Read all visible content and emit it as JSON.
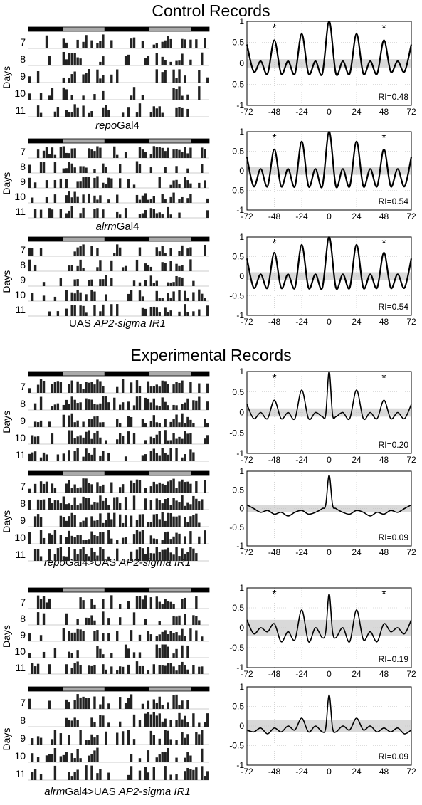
{
  "titles": {
    "control": "Control Records",
    "experimental": "Experimental Records"
  },
  "captions": [
    {
      "italic": "repo",
      "plain": "Gal4"
    },
    {
      "italic": "alrm",
      "plain": "Gal4"
    },
    {
      "pre": "UAS ",
      "italic": "AP2-sigma IR1"
    },
    {
      "italic": "repo",
      "plain": "Gal4>UAS ",
      "italic2": "AP2-sigma IR1"
    },
    {
      "italic": "alrm",
      "plain": "Gal4>UAS ",
      "italic2": "AP2-sigma IR1"
    }
  ],
  "actogram": {
    "ylabel": "Days",
    "days": [
      "7",
      "8",
      "9",
      "10",
      "11"
    ]
  },
  "chart_data": [
    {
      "type": "line",
      "panel": "repoGal4 control",
      "x": [
        -72,
        -66,
        -60,
        -54,
        -48,
        -42,
        -36,
        -30,
        -24,
        -18,
        -12,
        -6,
        0,
        6,
        12,
        18,
        24,
        30,
        36,
        42,
        48,
        54,
        60,
        66,
        72
      ],
      "y": [
        0.45,
        -0.2,
        0.05,
        -0.25,
        0.55,
        -0.25,
        0.05,
        -0.25,
        0.7,
        -0.25,
        0.05,
        -0.25,
        1.0,
        -0.25,
        0.05,
        -0.25,
        0.7,
        -0.25,
        0.05,
        -0.25,
        0.55,
        -0.2,
        0.05,
        -0.2,
        0.45
      ],
      "xlim": [
        -72,
        72
      ],
      "ylim": [
        -1,
        1
      ],
      "xticks": [
        "-72",
        "-48",
        "-24",
        "0",
        "24",
        "48",
        "72"
      ],
      "yticks": [
        "-1",
        "-0.5",
        "0",
        "0.5",
        "1"
      ],
      "stars": [
        -48,
        48
      ],
      "ri": "RI=0.48",
      "band": [
        -0.1,
        0.1
      ]
    },
    {
      "type": "line",
      "panel": "alrmGal4 control",
      "x": [
        -72,
        -66,
        -60,
        -54,
        -48,
        -42,
        -36,
        -30,
        -24,
        -18,
        -12,
        -6,
        0,
        6,
        12,
        18,
        24,
        30,
        36,
        42,
        48,
        54,
        60,
        66,
        72
      ],
      "y": [
        0.35,
        -0.4,
        0.05,
        -0.4,
        0.55,
        -0.4,
        0.05,
        -0.4,
        0.75,
        -0.4,
        0.05,
        -0.4,
        1.0,
        -0.4,
        0.05,
        -0.4,
        0.75,
        -0.4,
        0.05,
        -0.4,
        0.55,
        -0.4,
        0.05,
        -0.4,
        0.35
      ],
      "xlim": [
        -72,
        72
      ],
      "ylim": [
        -1,
        1
      ],
      "xticks": [
        "-72",
        "-48",
        "-24",
        "0",
        "24",
        "48",
        "72"
      ],
      "yticks": [
        "-1",
        "-0.5",
        "0",
        "0.5",
        "1"
      ],
      "stars": [
        -48,
        48
      ],
      "ri": "RI=0.54",
      "band": [
        -0.1,
        0.1
      ]
    },
    {
      "type": "line",
      "panel": "UAS AP2-sigma IR1",
      "x": [
        -72,
        -66,
        -60,
        -54,
        -48,
        -42,
        -36,
        -30,
        -24,
        -18,
        -12,
        -6,
        0,
        6,
        12,
        18,
        24,
        30,
        36,
        42,
        48,
        54,
        60,
        66,
        72
      ],
      "y": [
        0.45,
        -0.3,
        0.05,
        -0.3,
        0.6,
        -0.3,
        0.05,
        -0.3,
        0.8,
        -0.3,
        0.05,
        -0.3,
        1.0,
        -0.3,
        0.05,
        -0.3,
        0.8,
        -0.3,
        0.05,
        -0.3,
        0.6,
        -0.3,
        0.05,
        -0.3,
        0.45
      ],
      "xlim": [
        -72,
        72
      ],
      "ylim": [
        -1,
        1
      ],
      "xticks": [
        "-72",
        "-48",
        "-24",
        "0",
        "24",
        "48",
        "72"
      ],
      "yticks": [
        "-1",
        "-0.5",
        "0",
        "0.5",
        "1"
      ],
      "stars": [
        -48,
        48
      ],
      "ri": "RI=0.54",
      "band": [
        -0.1,
        0.1
      ]
    },
    {
      "type": "line",
      "panel": "repoGal4>UAS AP2-sigma IR1 fly 1",
      "x": [
        -72,
        -66,
        -60,
        -54,
        -48,
        -42,
        -36,
        -30,
        -24,
        -18,
        -12,
        -6,
        -3,
        0,
        3,
        6,
        12,
        18,
        24,
        30,
        36,
        42,
        48,
        54,
        60,
        66,
        72
      ],
      "y": [
        0.2,
        -0.15,
        0.0,
        -0.15,
        0.3,
        -0.15,
        0.0,
        -0.15,
        0.55,
        -0.15,
        0.0,
        -0.1,
        -0.05,
        1.0,
        -0.05,
        -0.1,
        0.0,
        -0.15,
        0.55,
        -0.15,
        0.0,
        -0.15,
        0.3,
        -0.15,
        0.0,
        -0.15,
        0.2
      ],
      "xlim": [
        -72,
        72
      ],
      "ylim": [
        -1,
        1
      ],
      "xticks": [
        "-72",
        "-48",
        "-24",
        "0",
        "24",
        "48",
        "72"
      ],
      "yticks": [
        "-1",
        "-0.5",
        "0",
        "0.5",
        "1"
      ],
      "stars": [
        -48,
        48
      ],
      "ri": "RI=0.20",
      "band": [
        -0.1,
        0.1
      ]
    },
    {
      "type": "line",
      "panel": "repoGal4>UAS AP2-sigma IR1 fly 2",
      "x": [
        -72,
        -66,
        -60,
        -54,
        -48,
        -42,
        -36,
        -30,
        -24,
        -18,
        -12,
        -6,
        -3,
        0,
        3,
        6,
        12,
        18,
        24,
        30,
        36,
        42,
        48,
        54,
        60,
        66,
        72
      ],
      "y": [
        0.1,
        0.0,
        -0.1,
        -0.05,
        -0.15,
        -0.1,
        -0.2,
        -0.1,
        -0.05,
        -0.15,
        -0.1,
        0.0,
        0.1,
        0.9,
        0.1,
        0.0,
        -0.1,
        -0.15,
        -0.05,
        -0.1,
        -0.2,
        -0.1,
        -0.15,
        -0.05,
        -0.1,
        0.0,
        0.1
      ],
      "xlim": [
        -72,
        72
      ],
      "ylim": [
        -1,
        1
      ],
      "xticks": [
        "-72",
        "-48",
        "-24",
        "0",
        "24",
        "48",
        "72"
      ],
      "yticks": [
        "-1",
        "-0.5",
        "0",
        "0.5",
        "1"
      ],
      "stars": [],
      "ri": "RI=0.09",
      "band": [
        -0.1,
        0.1
      ]
    },
    {
      "type": "line",
      "panel": "alrmGal4>UAS AP2-sigma IR1 fly 1",
      "x": [
        -72,
        -66,
        -60,
        -54,
        -48,
        -42,
        -36,
        -30,
        -24,
        -18,
        -12,
        -6,
        -3,
        0,
        3,
        6,
        12,
        18,
        24,
        30,
        36,
        42,
        48,
        54,
        60,
        66,
        72
      ],
      "y": [
        0.2,
        -0.15,
        0.0,
        -0.1,
        0.1,
        -0.35,
        -0.1,
        -0.3,
        0.45,
        -0.35,
        0.0,
        -0.25,
        -0.1,
        0.85,
        -0.1,
        -0.25,
        0.0,
        -0.35,
        0.45,
        -0.3,
        -0.1,
        -0.35,
        0.1,
        -0.1,
        0.0,
        -0.15,
        0.2
      ],
      "xlim": [
        -72,
        72
      ],
      "ylim": [
        -1,
        1
      ],
      "xticks": [
        "-72",
        "-48",
        "-24",
        "0",
        "24",
        "48",
        "72"
      ],
      "yticks": [
        "-1",
        "-0.5",
        "0",
        "0.5",
        "1"
      ],
      "stars": [
        -48,
        48
      ],
      "ri": "RI=0.19",
      "band": [
        -0.2,
        0.2
      ]
    },
    {
      "type": "line",
      "panel": "alrmGal4>UAS AP2-sigma IR1 fly 2",
      "x": [
        -72,
        -66,
        -60,
        -54,
        -48,
        -42,
        -36,
        -30,
        -24,
        -18,
        -12,
        -6,
        -3,
        0,
        3,
        6,
        12,
        18,
        24,
        30,
        36,
        42,
        48,
        54,
        60,
        66,
        72
      ],
      "y": [
        -0.1,
        -0.15,
        -0.05,
        -0.2,
        -0.05,
        -0.15,
        0.0,
        -0.1,
        0.2,
        -0.15,
        0.0,
        -0.15,
        -0.05,
        0.8,
        -0.05,
        -0.15,
        0.0,
        -0.1,
        0.2,
        -0.1,
        0.0,
        -0.15,
        -0.05,
        -0.15,
        -0.05,
        -0.2,
        -0.1
      ],
      "xlim": [
        -72,
        72
      ],
      "ylim": [
        -1,
        1
      ],
      "xticks": [
        "-72",
        "-48",
        "-24",
        "0",
        "24",
        "48",
        "72"
      ],
      "yticks": [
        "-1",
        "-0.5",
        "0",
        "0.5",
        "1"
      ],
      "stars": [],
      "ri": "RI=0.09",
      "band": [
        -0.15,
        0.15
      ]
    }
  ]
}
